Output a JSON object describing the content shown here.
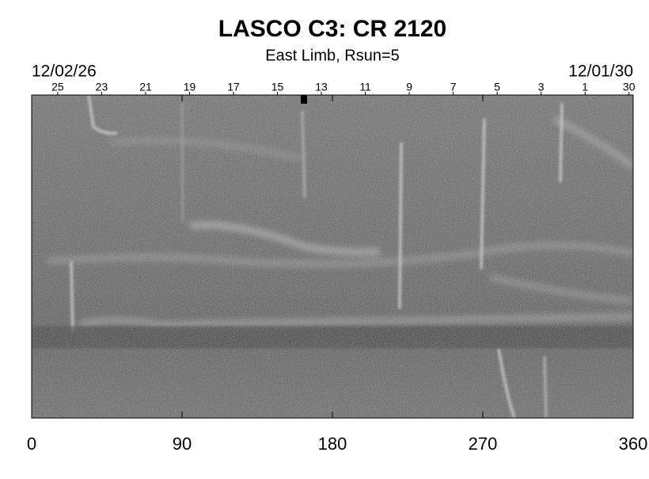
{
  "chart_data": {
    "type": "image",
    "title": "LASCO C3: CR 2120",
    "subtitle": "East Limb, Rsun=5",
    "start_date": "12/02/26",
    "end_date": "12/01/30",
    "xlim": [
      0,
      360
    ],
    "xticks": [
      0,
      90,
      180,
      270,
      360
    ],
    "day_ticks": [
      {
        "value": 15.6,
        "label": "25"
      },
      {
        "value": 41.9,
        "label": "23"
      },
      {
        "value": 68.2,
        "label": "21"
      },
      {
        "value": 94.5,
        "label": "19"
      },
      {
        "value": 120.8,
        "label": "17"
      },
      {
        "value": 147.1,
        "label": "15"
      },
      {
        "value": 173.4,
        "label": "13"
      },
      {
        "value": 199.7,
        "label": "11"
      },
      {
        "value": 226,
        "label": "9"
      },
      {
        "value": 252.3,
        "label": "7"
      },
      {
        "value": 278.6,
        "label": "5"
      },
      {
        "value": 304.9,
        "label": "3"
      },
      {
        "value": 331.2,
        "label": "1"
      },
      {
        "value": 357.5,
        "label": "30"
      }
    ]
  }
}
